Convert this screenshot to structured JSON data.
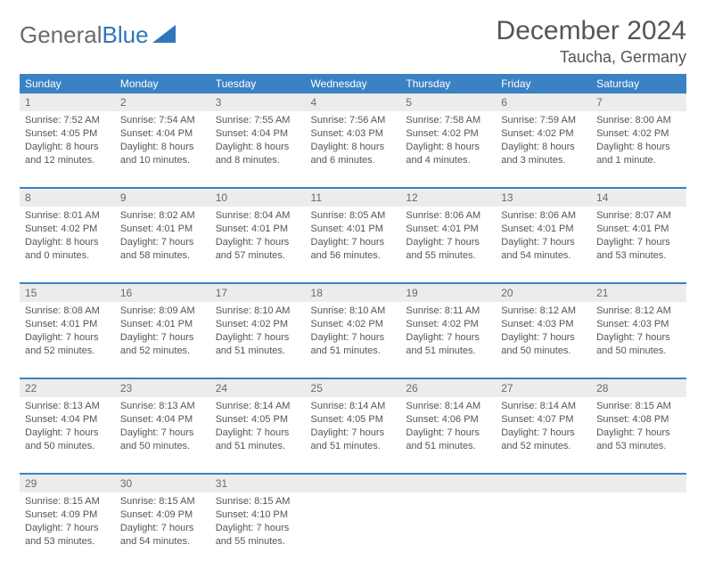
{
  "brand": {
    "part1": "General",
    "part2": "Blue"
  },
  "title": "December 2024",
  "location": "Taucha, Germany",
  "colors": {
    "header_bg": "#3b82c4",
    "header_text": "#ffffff",
    "daynum_bg": "#ececec",
    "border": "#3b82c4",
    "text": "#555555",
    "logo_gray": "#6a6a6a",
    "logo_blue": "#2f76bb",
    "page_bg": "#ffffff"
  },
  "typography": {
    "title_fontsize": 30,
    "location_fontsize": 18,
    "header_fontsize": 12,
    "body_fontsize": 11
  },
  "day_headers": [
    "Sunday",
    "Monday",
    "Tuesday",
    "Wednesday",
    "Thursday",
    "Friday",
    "Saturday"
  ],
  "weeks": [
    [
      {
        "n": "1",
        "sunrise": "Sunrise: 7:52 AM",
        "sunset": "Sunset: 4:05 PM",
        "daylight1": "Daylight: 8 hours",
        "daylight2": "and 12 minutes."
      },
      {
        "n": "2",
        "sunrise": "Sunrise: 7:54 AM",
        "sunset": "Sunset: 4:04 PM",
        "daylight1": "Daylight: 8 hours",
        "daylight2": "and 10 minutes."
      },
      {
        "n": "3",
        "sunrise": "Sunrise: 7:55 AM",
        "sunset": "Sunset: 4:04 PM",
        "daylight1": "Daylight: 8 hours",
        "daylight2": "and 8 minutes."
      },
      {
        "n": "4",
        "sunrise": "Sunrise: 7:56 AM",
        "sunset": "Sunset: 4:03 PM",
        "daylight1": "Daylight: 8 hours",
        "daylight2": "and 6 minutes."
      },
      {
        "n": "5",
        "sunrise": "Sunrise: 7:58 AM",
        "sunset": "Sunset: 4:02 PM",
        "daylight1": "Daylight: 8 hours",
        "daylight2": "and 4 minutes."
      },
      {
        "n": "6",
        "sunrise": "Sunrise: 7:59 AM",
        "sunset": "Sunset: 4:02 PM",
        "daylight1": "Daylight: 8 hours",
        "daylight2": "and 3 minutes."
      },
      {
        "n": "7",
        "sunrise": "Sunrise: 8:00 AM",
        "sunset": "Sunset: 4:02 PM",
        "daylight1": "Daylight: 8 hours",
        "daylight2": "and 1 minute."
      }
    ],
    [
      {
        "n": "8",
        "sunrise": "Sunrise: 8:01 AM",
        "sunset": "Sunset: 4:02 PM",
        "daylight1": "Daylight: 8 hours",
        "daylight2": "and 0 minutes."
      },
      {
        "n": "9",
        "sunrise": "Sunrise: 8:02 AM",
        "sunset": "Sunset: 4:01 PM",
        "daylight1": "Daylight: 7 hours",
        "daylight2": "and 58 minutes."
      },
      {
        "n": "10",
        "sunrise": "Sunrise: 8:04 AM",
        "sunset": "Sunset: 4:01 PM",
        "daylight1": "Daylight: 7 hours",
        "daylight2": "and 57 minutes."
      },
      {
        "n": "11",
        "sunrise": "Sunrise: 8:05 AM",
        "sunset": "Sunset: 4:01 PM",
        "daylight1": "Daylight: 7 hours",
        "daylight2": "and 56 minutes."
      },
      {
        "n": "12",
        "sunrise": "Sunrise: 8:06 AM",
        "sunset": "Sunset: 4:01 PM",
        "daylight1": "Daylight: 7 hours",
        "daylight2": "and 55 minutes."
      },
      {
        "n": "13",
        "sunrise": "Sunrise: 8:06 AM",
        "sunset": "Sunset: 4:01 PM",
        "daylight1": "Daylight: 7 hours",
        "daylight2": "and 54 minutes."
      },
      {
        "n": "14",
        "sunrise": "Sunrise: 8:07 AM",
        "sunset": "Sunset: 4:01 PM",
        "daylight1": "Daylight: 7 hours",
        "daylight2": "and 53 minutes."
      }
    ],
    [
      {
        "n": "15",
        "sunrise": "Sunrise: 8:08 AM",
        "sunset": "Sunset: 4:01 PM",
        "daylight1": "Daylight: 7 hours",
        "daylight2": "and 52 minutes."
      },
      {
        "n": "16",
        "sunrise": "Sunrise: 8:09 AM",
        "sunset": "Sunset: 4:01 PM",
        "daylight1": "Daylight: 7 hours",
        "daylight2": "and 52 minutes."
      },
      {
        "n": "17",
        "sunrise": "Sunrise: 8:10 AM",
        "sunset": "Sunset: 4:02 PM",
        "daylight1": "Daylight: 7 hours",
        "daylight2": "and 51 minutes."
      },
      {
        "n": "18",
        "sunrise": "Sunrise: 8:10 AM",
        "sunset": "Sunset: 4:02 PM",
        "daylight1": "Daylight: 7 hours",
        "daylight2": "and 51 minutes."
      },
      {
        "n": "19",
        "sunrise": "Sunrise: 8:11 AM",
        "sunset": "Sunset: 4:02 PM",
        "daylight1": "Daylight: 7 hours",
        "daylight2": "and 51 minutes."
      },
      {
        "n": "20",
        "sunrise": "Sunrise: 8:12 AM",
        "sunset": "Sunset: 4:03 PM",
        "daylight1": "Daylight: 7 hours",
        "daylight2": "and 50 minutes."
      },
      {
        "n": "21",
        "sunrise": "Sunrise: 8:12 AM",
        "sunset": "Sunset: 4:03 PM",
        "daylight1": "Daylight: 7 hours",
        "daylight2": "and 50 minutes."
      }
    ],
    [
      {
        "n": "22",
        "sunrise": "Sunrise: 8:13 AM",
        "sunset": "Sunset: 4:04 PM",
        "daylight1": "Daylight: 7 hours",
        "daylight2": "and 50 minutes."
      },
      {
        "n": "23",
        "sunrise": "Sunrise: 8:13 AM",
        "sunset": "Sunset: 4:04 PM",
        "daylight1": "Daylight: 7 hours",
        "daylight2": "and 50 minutes."
      },
      {
        "n": "24",
        "sunrise": "Sunrise: 8:14 AM",
        "sunset": "Sunset: 4:05 PM",
        "daylight1": "Daylight: 7 hours",
        "daylight2": "and 51 minutes."
      },
      {
        "n": "25",
        "sunrise": "Sunrise: 8:14 AM",
        "sunset": "Sunset: 4:05 PM",
        "daylight1": "Daylight: 7 hours",
        "daylight2": "and 51 minutes."
      },
      {
        "n": "26",
        "sunrise": "Sunrise: 8:14 AM",
        "sunset": "Sunset: 4:06 PM",
        "daylight1": "Daylight: 7 hours",
        "daylight2": "and 51 minutes."
      },
      {
        "n": "27",
        "sunrise": "Sunrise: 8:14 AM",
        "sunset": "Sunset: 4:07 PM",
        "daylight1": "Daylight: 7 hours",
        "daylight2": "and 52 minutes."
      },
      {
        "n": "28",
        "sunrise": "Sunrise: 8:15 AM",
        "sunset": "Sunset: 4:08 PM",
        "daylight1": "Daylight: 7 hours",
        "daylight2": "and 53 minutes."
      }
    ],
    [
      {
        "n": "29",
        "sunrise": "Sunrise: 8:15 AM",
        "sunset": "Sunset: 4:09 PM",
        "daylight1": "Daylight: 7 hours",
        "daylight2": "and 53 minutes."
      },
      {
        "n": "30",
        "sunrise": "Sunrise: 8:15 AM",
        "sunset": "Sunset: 4:09 PM",
        "daylight1": "Daylight: 7 hours",
        "daylight2": "and 54 minutes."
      },
      {
        "n": "31",
        "sunrise": "Sunrise: 8:15 AM",
        "sunset": "Sunset: 4:10 PM",
        "daylight1": "Daylight: 7 hours",
        "daylight2": "and 55 minutes."
      },
      null,
      null,
      null,
      null
    ]
  ]
}
